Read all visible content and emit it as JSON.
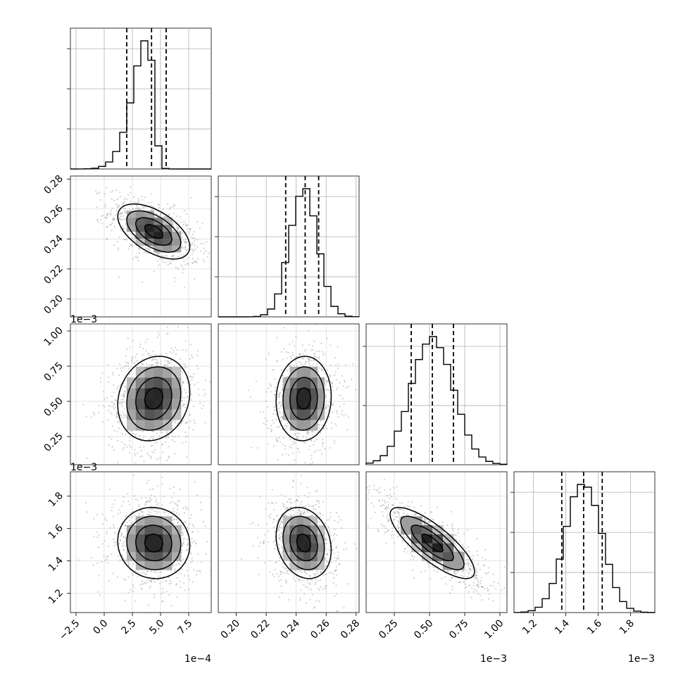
{
  "chart_data": {
    "type": "corner",
    "n_params": 4,
    "grid": true,
    "params": [
      {
        "range": [
          -3.0,
          9.5
        ],
        "ticks": [
          -2.5,
          0.0,
          2.5,
          5.0,
          7.5
        ],
        "tick_labels": [
          "−2.5",
          "0.0",
          "2.5",
          "5.0",
          "7.5"
        ],
        "offset_label": "1e−4",
        "quantiles": [
          2.0,
          4.2,
          5.5
        ],
        "mean": 4.4,
        "sd": 1.6,
        "skew": -4.0,
        "hist_ytick_count": 3
      },
      {
        "range": [
          0.188,
          0.282
        ],
        "ticks": [
          0.2,
          0.22,
          0.24,
          0.26,
          0.28
        ],
        "tick_labels": [
          "0.20",
          "0.22",
          "0.24",
          "0.26",
          "0.28"
        ],
        "offset_label": "",
        "quantiles": [
          0.233,
          0.246,
          0.255
        ],
        "mean": 0.245,
        "sd": 0.0092,
        "skew": 0,
        "hist_ytick_count": 3
      },
      {
        "range": [
          0.05,
          1.05
        ],
        "ticks": [
          0.25,
          0.5,
          0.75,
          1.0
        ],
        "tick_labels": [
          "0.25",
          "0.50",
          "0.75",
          "1.00"
        ],
        "offset_label": "1e−3",
        "quantiles": [
          0.37,
          0.52,
          0.67
        ],
        "mean": 0.52,
        "sd": 0.15,
        "skew": 0,
        "hist_ytick_count": 2
      },
      {
        "range": [
          1.08,
          1.95
        ],
        "ticks": [
          1.2,
          1.4,
          1.6,
          1.8
        ],
        "tick_labels": [
          "1.2",
          "1.4",
          "1.6",
          "1.8"
        ],
        "offset_label": "1e−3",
        "quantiles": [
          1.375,
          1.51,
          1.625
        ],
        "mean": 1.51,
        "sd": 0.11,
        "skew": 0,
        "hist_ytick_count": 3
      }
    ],
    "correlations": {
      "1-0": -0.55,
      "2-0": 0.15,
      "2-1": 0.05,
      "3-0": -0.05,
      "3-1": -0.2,
      "3-2": -0.8
    },
    "contour_levels": [
      0.5,
      1.0,
      1.5,
      2.0
    ]
  }
}
